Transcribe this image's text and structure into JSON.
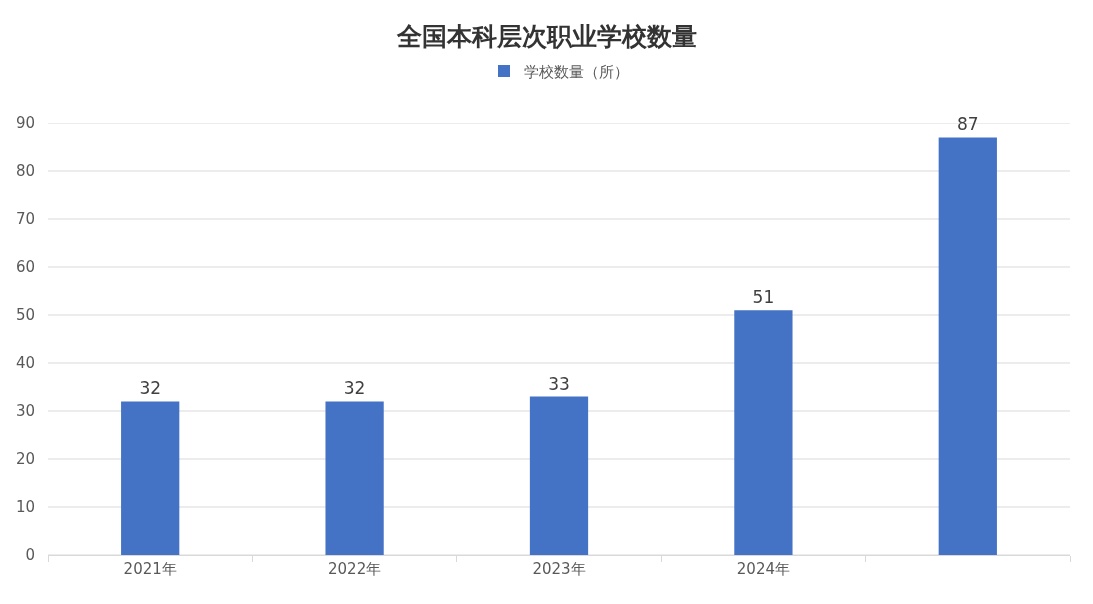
{
  "chart_data": {
    "type": "bar",
    "title": "全国本科层次职业学校数量",
    "categories": [
      "2021年",
      "2022年",
      "2023年",
      "2024年",
      null
    ],
    "series": [
      {
        "name": "学校数量（所）",
        "color": "#4472c4",
        "values": [
          32,
          32,
          33,
          51,
          87
        ]
      }
    ],
    "ylim": [
      0,
      90
    ],
    "yticks": [
      0,
      10,
      20,
      30,
      40,
      50,
      60,
      70,
      80,
      90
    ],
    "grid": "y",
    "legend": "top",
    "data_labels": true
  }
}
